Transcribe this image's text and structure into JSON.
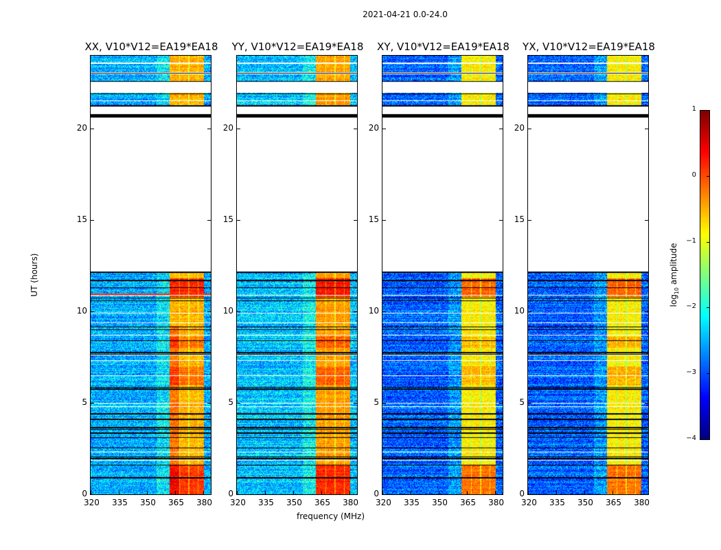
{
  "chart_data": {
    "type": "heatmap",
    "title": "2021-04-21 0.0-24.0",
    "xlabel": "frequency (MHz)",
    "ylabel": "UT (hours)",
    "xlim": [
      320,
      384
    ],
    "ylim": [
      0,
      24
    ],
    "xticks": [
      "320",
      "335",
      "350",
      "365",
      "380"
    ],
    "xtick_values": [
      320,
      335,
      350,
      365,
      380
    ],
    "yticks": [
      "0",
      "5",
      "10",
      "15",
      "20"
    ],
    "ytick_values": [
      0,
      5,
      10,
      15,
      20
    ],
    "colorbar": {
      "label_prefix": "log",
      "label_sub": "10",
      "label_suffix": " amplitude",
      "colormap": "jet",
      "range": [
        -4,
        1
      ],
      "ticks": [
        "1",
        "0",
        "−1",
        "−2",
        "−3",
        "−4"
      ],
      "tick_values": [
        1,
        0,
        -1,
        -2,
        -3,
        -4
      ]
    },
    "panels": [
      {
        "title": "XX, V10*V12=EA19*EA18",
        "background_level": -2.5,
        "band_level": -0.5
      },
      {
        "title": "YY, V10*V12=EA19*EA18",
        "background_level": -2.4,
        "band_level": -0.4
      },
      {
        "title": "XY, V10*V12=EA19*EA18",
        "background_level": -2.9,
        "band_level": -0.8
      },
      {
        "title": "YX, V10*V12=EA19*EA18",
        "background_level": -2.9,
        "band_level": -0.8
      }
    ],
    "data_time_ranges_hours": [
      [
        0,
        12.2
      ],
      [
        21.2,
        21.95
      ],
      [
        22.6,
        23.0
      ],
      [
        23.1,
        23.55
      ],
      [
        23.6,
        24.0
      ]
    ],
    "flagged_thick_range_hours": [
      20.6,
      20.82
    ],
    "flagged_rows_hours": [
      0.9,
      1.6,
      1.95,
      2.05,
      2.55,
      3.1,
      3.35,
      3.55,
      3.65,
      4.1,
      4.4,
      5.75,
      5.85,
      7.65,
      7.75,
      8.4,
      9.0,
      9.15,
      10.6,
      10.75,
      11.3,
      11.7,
      12.15,
      21.25,
      21.9,
      22.6,
      23.05
    ],
    "empty_rows_hours": [
      1.85,
      2.3,
      4.8,
      5.0,
      6.5,
      7.3,
      7.6,
      8.7,
      9.4,
      9.9,
      10.9,
      21.55,
      23.6
    ],
    "band_columns_mhz": [
      [
        362,
        367
      ],
      [
        367.5,
        372
      ],
      [
        372.5,
        377
      ],
      [
        377.5,
        380.5
      ]
    ],
    "hot_periods_hours": [
      [
        0,
        1.6,
        0.6
      ],
      [
        10.8,
        11.8,
        0.7
      ],
      [
        6.0,
        7.0,
        0.3
      ],
      [
        8.0,
        8.6,
        0.3
      ]
    ]
  }
}
